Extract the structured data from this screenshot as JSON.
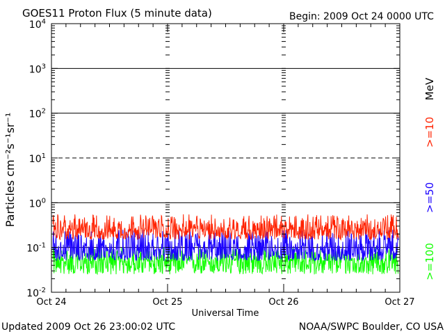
{
  "title": "GOES11 Proton Flux (5 minute data)",
  "begin": "Begin: 2009 Oct 24 0000 UTC",
  "updated": "Updated 2009 Oct 26 23:00:02 UTC",
  "credit": "NOAA/SWPC Boulder, CO USA",
  "colors": {
    "ge10": "#ff2200",
    "ge50": "#1a00ff",
    "ge100": "#11ff00"
  },
  "chart_data": {
    "type": "line",
    "title": "GOES11 Proton Flux (5 minute data)",
    "xlabel": "Universal Time",
    "ylabel": "Particles cm⁻²s⁻¹sr⁻¹",
    "yscale": "log",
    "ylim": [
      0.01,
      10000
    ],
    "y_ticks": [
      {
        "base": "10",
        "exp": "4"
      },
      {
        "base": "10",
        "exp": "3"
      },
      {
        "base": "10",
        "exp": "2"
      },
      {
        "base": "10",
        "exp": "1"
      },
      {
        "base": "10",
        "exp": "0"
      },
      {
        "base": "10",
        "exp": "-1"
      },
      {
        "base": "10",
        "exp": "-2"
      }
    ],
    "x_ticks": [
      "Oct 24",
      "Oct 25",
      "Oct 26",
      "Oct 27"
    ],
    "xlim": [
      "2009-10-24T00:00",
      "2009-10-27T00:00"
    ],
    "legend_unit": "MeV",
    "series": [
      {
        "name": ">=10",
        "color": "#ff2200",
        "typical": 0.25,
        "range": [
          0.15,
          0.55
        ]
      },
      {
        "name": ">=50",
        "color": "#1a00ff",
        "typical": 0.09,
        "range": [
          0.05,
          0.25
        ]
      },
      {
        "name": ">=100",
        "color": "#11ff00",
        "typical": 0.05,
        "range": [
          0.025,
          0.1
        ]
      }
    ]
  }
}
